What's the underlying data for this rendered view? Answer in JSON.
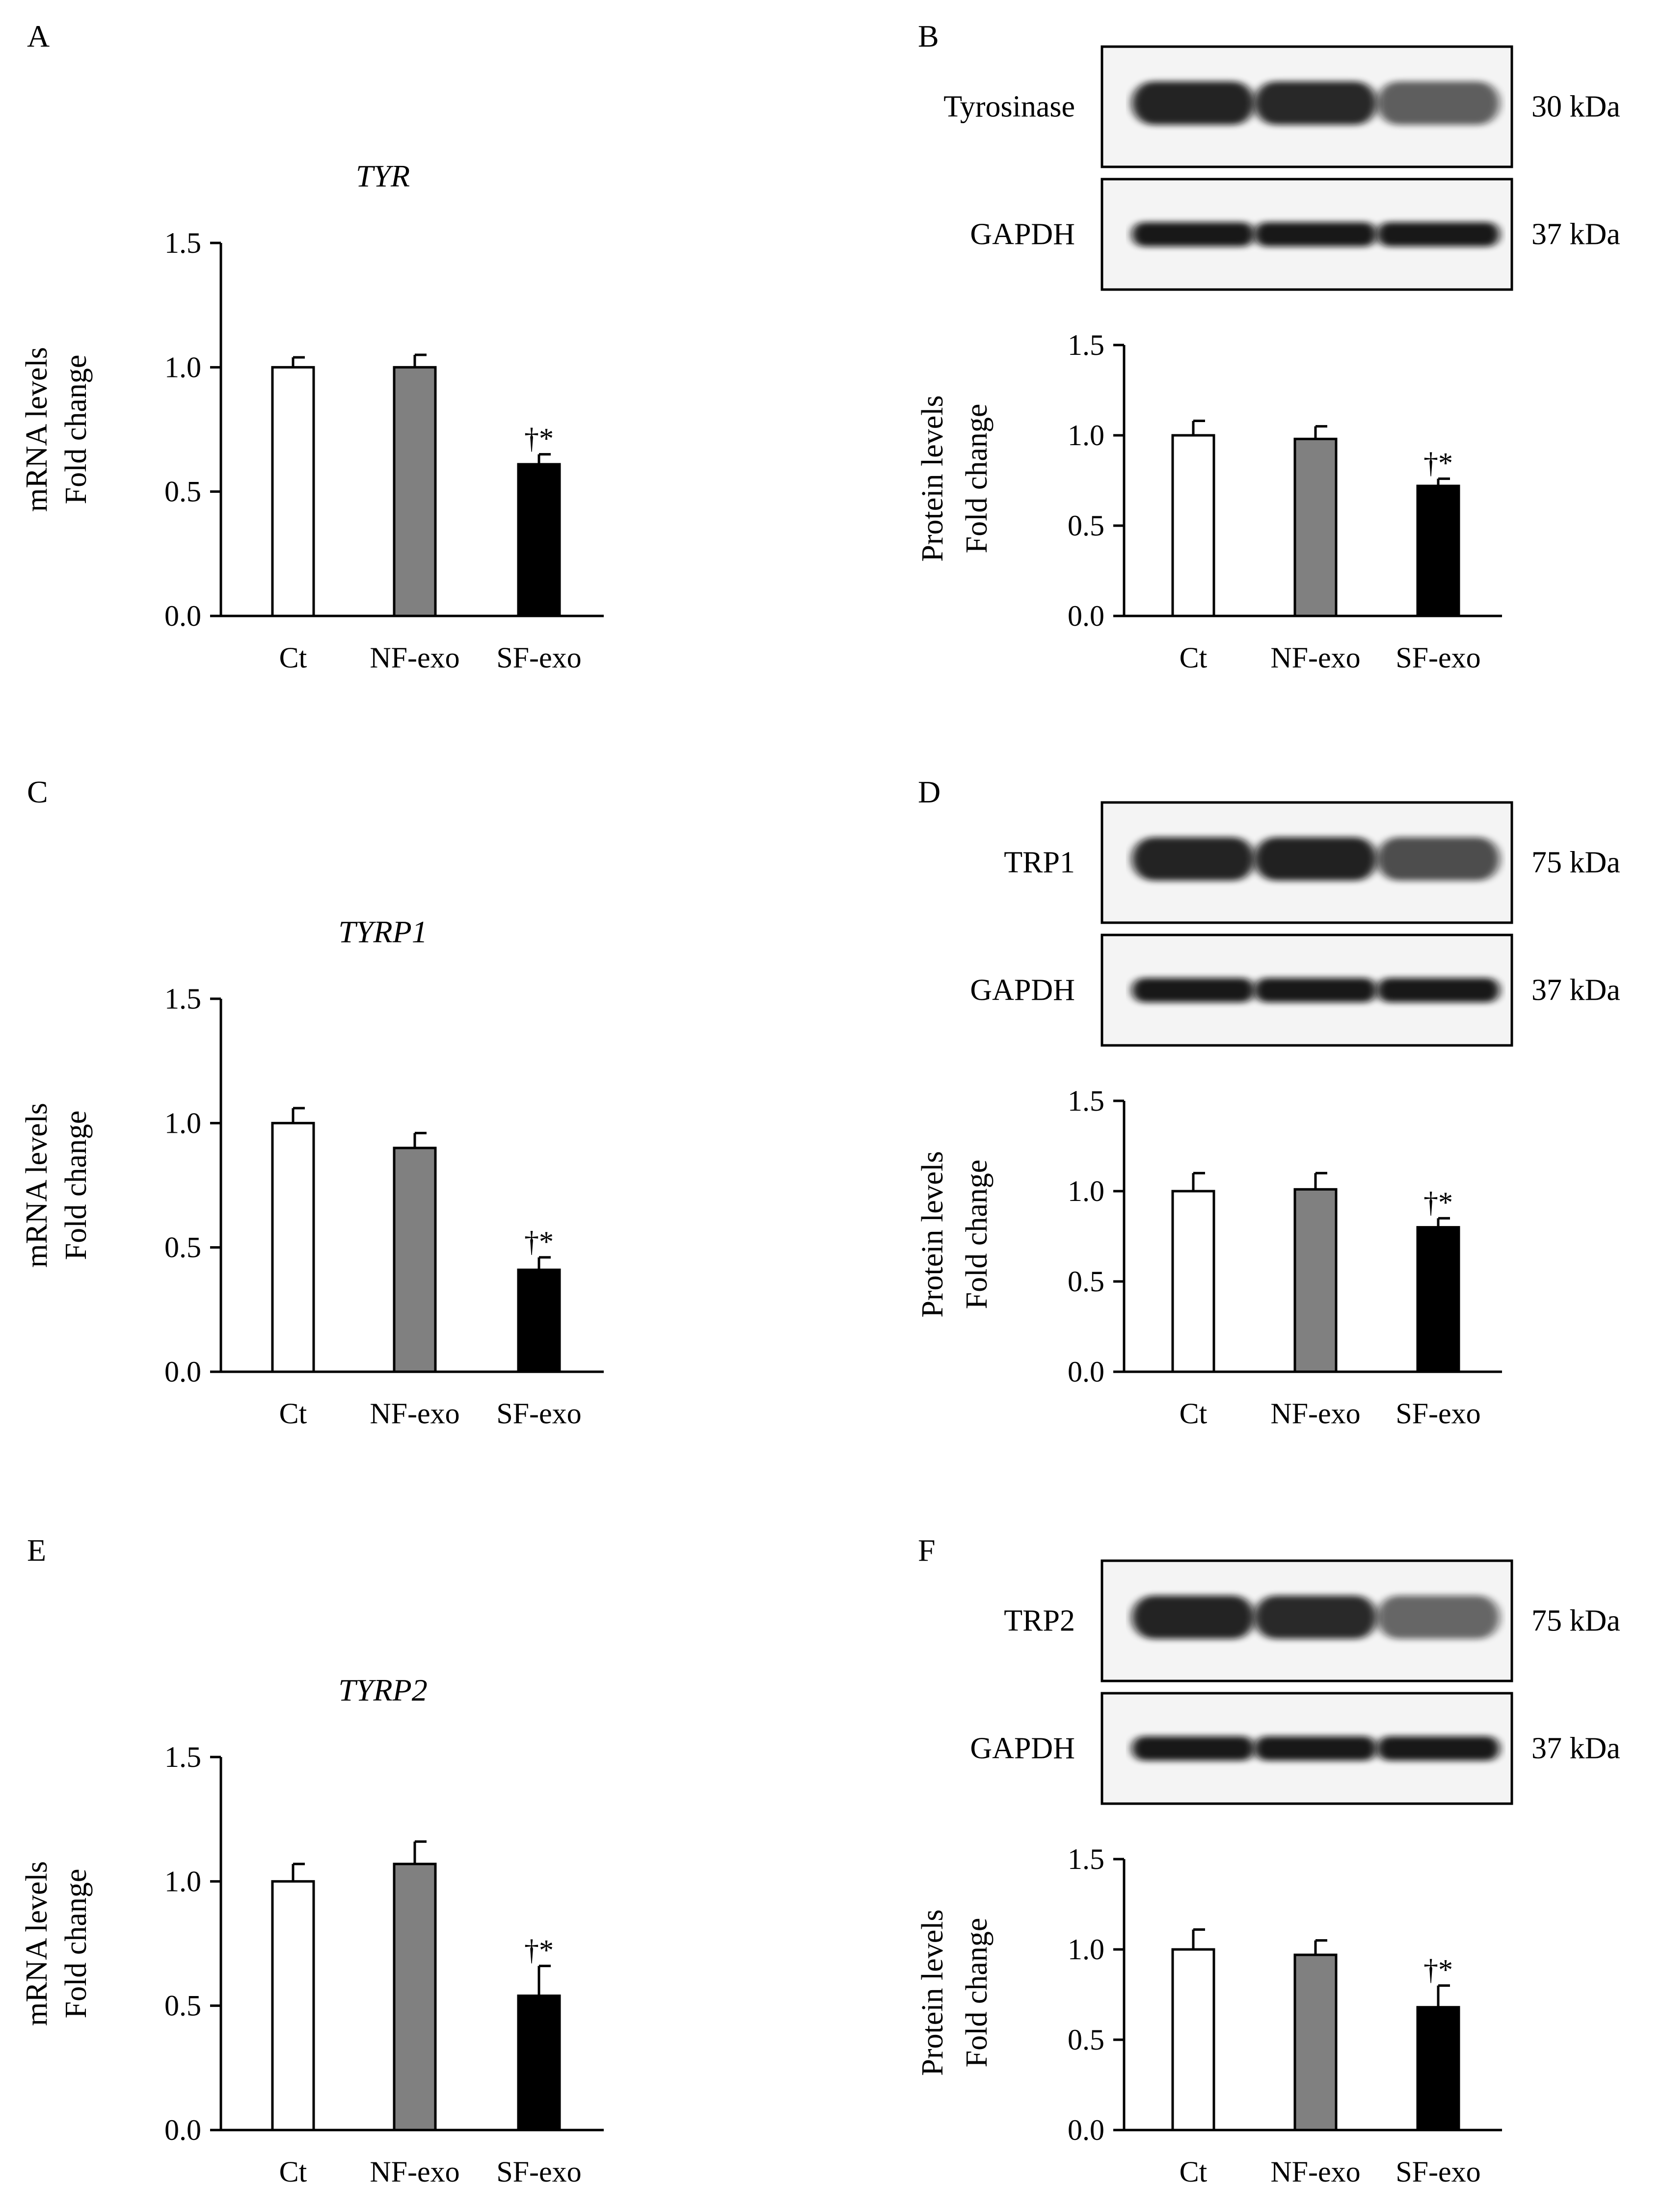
{
  "colors": {
    "ct": "#ffffff",
    "nf_exo": "#808080",
    "sf_exo": "#000000",
    "axis": "#000000"
  },
  "panels": [
    {
      "letter": "A",
      "kind": "mrna",
      "gene": "TYR"
    },
    {
      "letter": "B",
      "kind": "western",
      "target_label": "Tyrosinase",
      "target_kda": "30 kDa",
      "control_label": "GAPDH",
      "control_kda": "37 kDa"
    },
    {
      "letter": "C",
      "kind": "mrna",
      "gene": "TYRP1"
    },
    {
      "letter": "D",
      "kind": "western",
      "target_label": "TRP1",
      "target_kda": "75 kDa",
      "control_label": "GAPDH",
      "control_kda": "37 kDa"
    },
    {
      "letter": "E",
      "kind": "mrna",
      "gene": "TYRP2"
    },
    {
      "letter": "F",
      "kind": "western",
      "target_label": "TRP2",
      "target_kda": "75 kDa",
      "control_label": "GAPDH",
      "control_kda": "37 kDa"
    }
  ],
  "chart_data": [
    {
      "panel": "A",
      "type": "bar",
      "title": "TYR",
      "ylabel": [
        "mRNA levels",
        "Fold change"
      ],
      "categories": [
        "Ct",
        "NF-exo",
        "SF-exo"
      ],
      "values": [
        1.0,
        1.0,
        0.61
      ],
      "errors": [
        0.04,
        0.05,
        0.04
      ],
      "annotations": [
        "",
        "",
        "†*"
      ],
      "ylim": [
        0,
        1.5
      ],
      "yticks": [
        "0.0",
        "0.5",
        "1.0",
        "1.5"
      ]
    },
    {
      "panel": "B",
      "type": "bar",
      "title": "",
      "ylabel": [
        "Protein levels",
        "Fold change"
      ],
      "categories": [
        "Ct",
        "NF-exo",
        "SF-exo"
      ],
      "values": [
        1.0,
        0.98,
        0.72
      ],
      "errors": [
        0.08,
        0.07,
        0.04
      ],
      "annotations": [
        "",
        "",
        "†*"
      ],
      "ylim": [
        0,
        1.5
      ],
      "yticks": [
        "0.0",
        "0.5",
        "1.0",
        "1.5"
      ]
    },
    {
      "panel": "C",
      "type": "bar",
      "title": "TYRP1",
      "ylabel": [
        "mRNA levels",
        "Fold change"
      ],
      "categories": [
        "Ct",
        "NF-exo",
        "SF-exo"
      ],
      "values": [
        1.0,
        0.9,
        0.41
      ],
      "errors": [
        0.06,
        0.06,
        0.05
      ],
      "annotations": [
        "",
        "",
        "†*"
      ],
      "ylim": [
        0,
        1.5
      ],
      "yticks": [
        "0.0",
        "0.5",
        "1.0",
        "1.5"
      ]
    },
    {
      "panel": "D",
      "type": "bar",
      "title": "",
      "ylabel": [
        "Protein levels",
        "Fold change"
      ],
      "categories": [
        "Ct",
        "NF-exo",
        "SF-exo"
      ],
      "values": [
        1.0,
        1.01,
        0.8
      ],
      "errors": [
        0.1,
        0.09,
        0.05
      ],
      "annotations": [
        "",
        "",
        "†*"
      ],
      "ylim": [
        0,
        1.5
      ],
      "yticks": [
        "0.0",
        "0.5",
        "1.0",
        "1.5"
      ]
    },
    {
      "panel": "E",
      "type": "bar",
      "title": "TYRP2",
      "ylabel": [
        "mRNA levels",
        "Fold change"
      ],
      "categories": [
        "Ct",
        "NF-exo",
        "SF-exo"
      ],
      "values": [
        1.0,
        1.07,
        0.54
      ],
      "errors": [
        0.07,
        0.09,
        0.12
      ],
      "annotations": [
        "",
        "",
        "†*"
      ],
      "ylim": [
        0,
        1.5
      ],
      "yticks": [
        "0.0",
        "0.5",
        "1.0",
        "1.5"
      ]
    },
    {
      "panel": "F",
      "type": "bar",
      "title": "",
      "ylabel": [
        "Protein levels",
        "Fold change"
      ],
      "categories": [
        "Ct",
        "NF-exo",
        "SF-exo"
      ],
      "values": [
        1.0,
        0.97,
        0.68
      ],
      "errors": [
        0.11,
        0.08,
        0.12
      ],
      "annotations": [
        "",
        "",
        "†*"
      ],
      "ylim": [
        0,
        1.5
      ],
      "yticks": [
        "0.0",
        "0.5",
        "1.0",
        "1.5"
      ]
    }
  ]
}
